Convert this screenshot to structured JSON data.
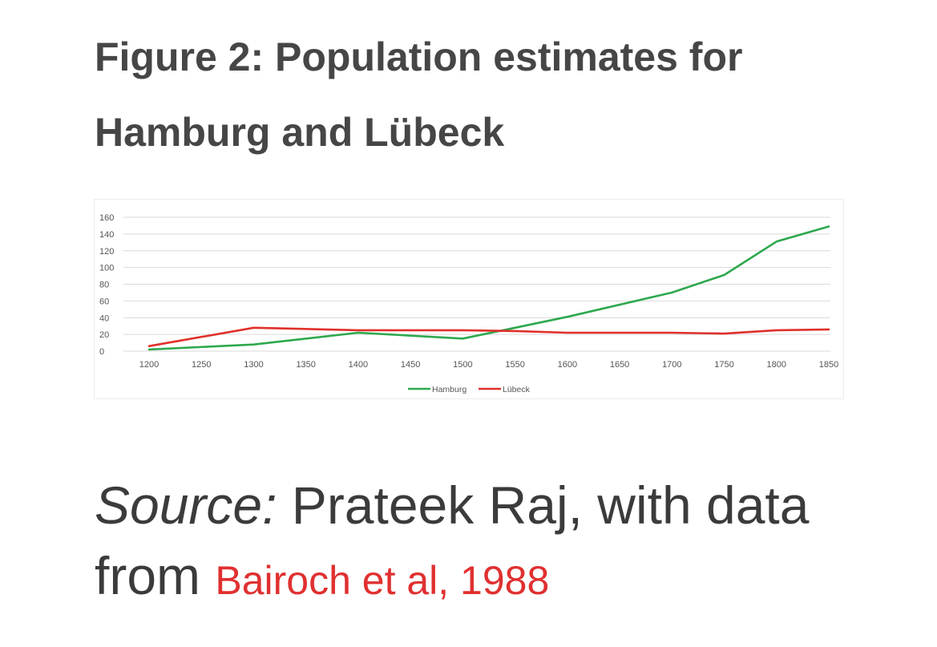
{
  "title": {
    "line1": "Figure 2: Population estimates for",
    "line2": "Hamburg and Lübeck"
  },
  "source": {
    "lead": "Source:",
    "text": " Prateek Raj, with data from ",
    "link": "Bairoch et al, 1988"
  },
  "colors": {
    "hamburg": "#2ea84e",
    "lubeck": "#e0302a",
    "grid": "#d9d9d9",
    "tick_text": "#555555"
  },
  "chart_data": {
    "type": "line",
    "x": [
      1200,
      1300,
      1400,
      1500,
      1550,
      1600,
      1700,
      1750,
      1800,
      1850
    ],
    "xticks": [
      1200,
      1250,
      1300,
      1350,
      1400,
      1450,
      1500,
      1550,
      1600,
      1650,
      1700,
      1750,
      1800,
      1850
    ],
    "yticks": [
      0,
      20,
      40,
      60,
      80,
      100,
      120,
      140,
      160
    ],
    "xlim": [
      1200,
      1850
    ],
    "ylim": [
      0,
      160
    ],
    "grid": true,
    "legend_position": "bottom-center",
    "series": [
      {
        "name": "Hamburg",
        "color": "#2ea84e",
        "values": [
          2,
          8,
          22,
          15,
          28,
          41,
          70,
          91,
          131,
          149
        ]
      },
      {
        "name": "Lübeck",
        "color": "#e0302a",
        "values": [
          6,
          28,
          25,
          25,
          24,
          22,
          22,
          21,
          25,
          26
        ]
      }
    ]
  }
}
